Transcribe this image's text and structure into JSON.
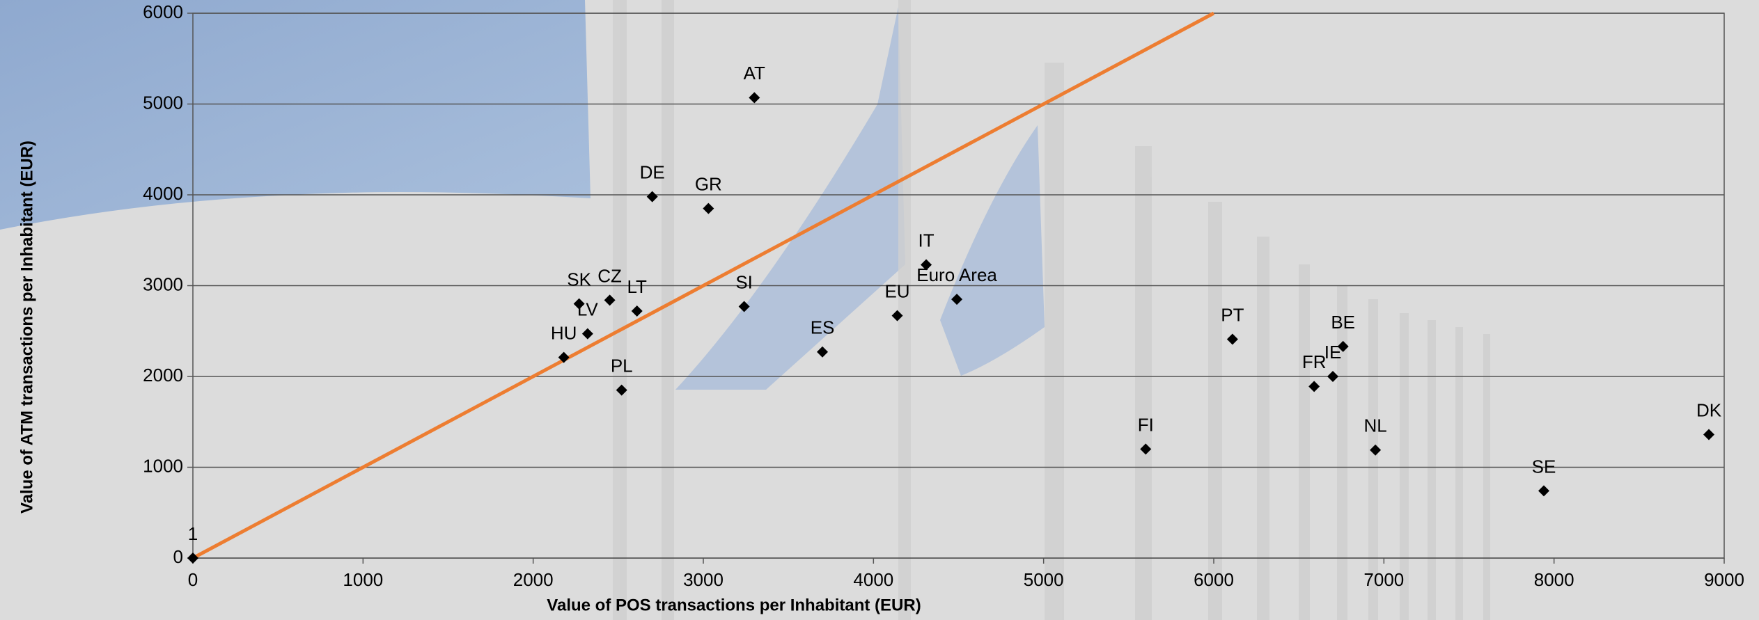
{
  "chart_data": {
    "type": "scatter",
    "x_label": "Value of POS transactions per Inhabitant (EUR)",
    "y_label": "Value of ATM transactions per Inhabitant (EUR)",
    "xlim": [
      0,
      9000
    ],
    "xticks": [
      0,
      1000,
      2000,
      3000,
      4000,
      5000,
      6000,
      7000,
      8000,
      9000
    ],
    "ylim": [
      0,
      6000
    ],
    "yticks": [
      0,
      1000,
      2000,
      3000,
      4000,
      5000,
      6000
    ],
    "grid": true,
    "series": [
      {
        "color": "#000000",
        "labels": [
          "1",
          "AT",
          "DE",
          "GR",
          "IT",
          "Euro Area",
          "EU",
          "SI",
          "SK",
          "CZ",
          "LT",
          "LV",
          "HU",
          "PL",
          "ES",
          "PT",
          "BE",
          "IE",
          "FR",
          "FI",
          "NL",
          "SE",
          "DK"
        ],
        "x": [
          0,
          3300,
          2700,
          3030,
          4310,
          4490,
          4140,
          3240,
          2270,
          2450,
          2610,
          2320,
          2180,
          2520,
          3700,
          6110,
          6760,
          6700,
          6590,
          5600,
          6950,
          7940,
          8910
        ],
        "values": [
          0,
          5070,
          3980,
          3850,
          3230,
          2850,
          2670,
          2770,
          2800,
          2840,
          2720,
          2470,
          2210,
          1850,
          2270,
          2410,
          2330,
          2000,
          1890,
          1200,
          1190,
          740,
          1360
        ]
      }
    ],
    "line": {
      "color": "#ed7d31",
      "x": [
        0,
        6000
      ],
      "values": [
        0,
        6000
      ]
    }
  }
}
